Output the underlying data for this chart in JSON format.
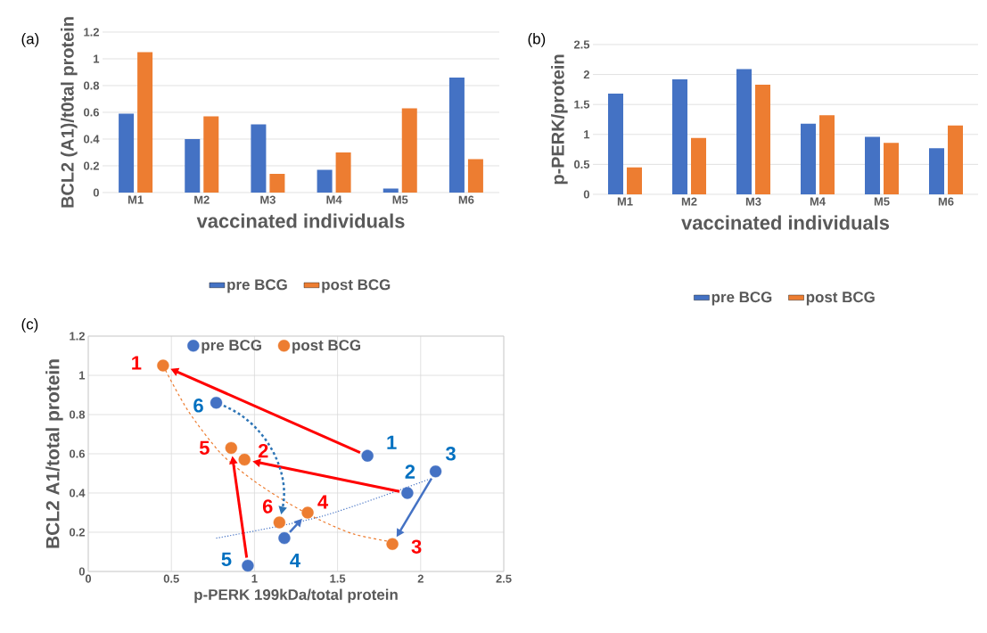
{
  "chart_data": [
    {
      "type": "bar",
      "annotations": [
        "(a)"
      ],
      "categories": [
        "M1",
        "M2",
        "M3",
        "M4",
        "M5",
        "M6"
      ],
      "series": [
        {
          "name": "pre BCG",
          "color": "#4472c4",
          "values": [
            0.59,
            0.4,
            0.51,
            0.17,
            0.03,
            0.86
          ]
        },
        {
          "name": "post BCG",
          "color": "#ed7d31",
          "values": [
            1.05,
            0.57,
            0.14,
            0.3,
            0.63,
            0.25
          ]
        }
      ],
      "xlabel": "vaccinated individuals",
      "ylabel": "BCL2 (A1)/t0tal protein",
      "ylim": [
        0,
        1.2
      ],
      "yticks": [
        0,
        0.2,
        0.4,
        0.6,
        0.8,
        1,
        1.2
      ],
      "grid": "y",
      "legend": "bottom"
    },
    {
      "type": "bar",
      "annotations": [
        "(b)"
      ],
      "categories": [
        "M1",
        "M2",
        "M3",
        "M4",
        "M5",
        "M6"
      ],
      "series": [
        {
          "name": "pre BCG",
          "color": "#4472c4",
          "values": [
            1.68,
            1.92,
            2.09,
            1.18,
            0.96,
            0.77
          ]
        },
        {
          "name": "post BCG",
          "color": "#ed7d31",
          "values": [
            0.45,
            0.94,
            1.83,
            1.32,
            0.86,
            1.15
          ]
        }
      ],
      "xlabel": "vaccinated individuals",
      "ylabel": "p-PERK/protein",
      "ylim": [
        0,
        2.5
      ],
      "yticks": [
        0,
        0.5,
        1,
        1.5,
        2,
        2.5
      ],
      "grid": "y",
      "legend": "bottom"
    },
    {
      "type": "scatter",
      "series": [
        {
          "name": "pre BCG",
          "marker": "circle",
          "color": "#4472c4",
          "x": [
            1.68,
            1.92,
            2.09,
            1.18,
            0.96,
            0.77
          ],
          "values": [
            0.59,
            0.4,
            0.51,
            0.17,
            0.03,
            0.86
          ]
        },
        {
          "name": "post BCG",
          "marker": "circle",
          "color": "#ed7d31",
          "x": [
            0.45,
            0.94,
            1.83,
            1.32,
            0.86,
            1.15
          ],
          "values": [
            1.05,
            0.57,
            0.14,
            0.3,
            0.63,
            0.25
          ]
        },
        {
          "type": "line",
          "marker": "none",
          "line_style": "dashed",
          "color": "#ed7d31",
          "x": [
            0.45,
            0.6,
            0.8,
            1.0,
            1.2,
            1.4,
            1.6,
            1.83
          ],
          "values": [
            1.05,
            0.82,
            0.6,
            0.46,
            0.35,
            0.26,
            0.19,
            0.15
          ]
        },
        {
          "type": "line",
          "marker": "none",
          "line_style": "dotted",
          "color": "#4472c4",
          "x": [
            0.77,
            1.4,
            2.05
          ],
          "values": [
            0.17,
            0.28,
            0.47
          ]
        }
      ],
      "annotations": [
        "(c)",
        {
          "text": "1",
          "x": 1.68,
          "y": 0.59
        },
        {
          "text": "2",
          "x": 1.92,
          "y": 0.4
        },
        {
          "text": "3",
          "x": 2.09,
          "y": 0.51
        },
        {
          "text": "4",
          "x": 1.18,
          "y": 0.17
        },
        {
          "text": "5",
          "x": 0.96,
          "y": 0.03
        },
        {
          "text": "6",
          "x": 0.77,
          "y": 0.86
        },
        {
          "text": "1",
          "x": 0.45,
          "y": 1.05
        },
        {
          "text": "2",
          "x": 0.94,
          "y": 0.57
        },
        {
          "text": "3",
          "x": 1.83,
          "y": 0.14
        },
        {
          "text": "4",
          "x": 1.32,
          "y": 0.3
        },
        {
          "text": "5",
          "x": 0.86,
          "y": 0.63
        },
        {
          "text": "6",
          "x": 1.16,
          "y": 0.25
        }
      ],
      "xlabel": "p-PERK 199kDa/total protein",
      "ylabel": "BCL2 A1/total protein",
      "xlim": [
        0,
        2.5
      ],
      "xticks": [
        0,
        0.5,
        1,
        1.5,
        2,
        2.5
      ],
      "ylim": [
        0,
        1.2
      ],
      "yticks": [
        0,
        0.2,
        0.4,
        0.6,
        0.8,
        1,
        1.2
      ],
      "grid": true,
      "legend": "top"
    }
  ]
}
